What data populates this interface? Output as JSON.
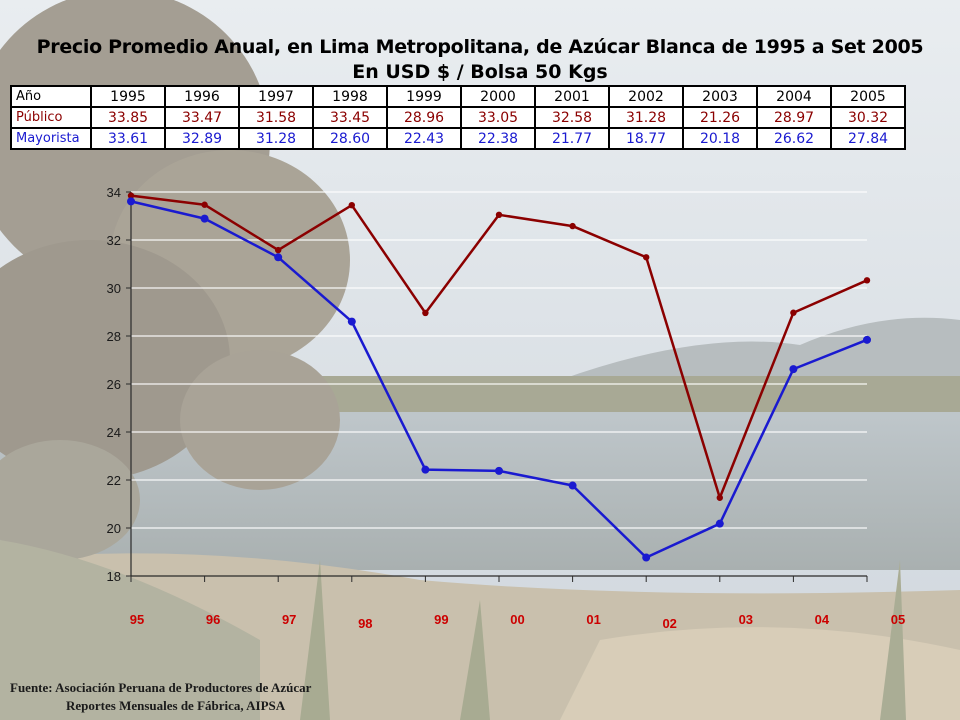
{
  "title": "Precio Promedio Anual, en Lima Metropolitana, de Azúcar Blanca de  1995 a Set 2005",
  "subtitle": "En  USD $  / Bolsa 50 Kgs",
  "table": {
    "year_header": "Año",
    "years": [
      "1995",
      "1996",
      "1997",
      "1998",
      "1999",
      "2000",
      "2001",
      "2002",
      "2003",
      "2004",
      "2005"
    ],
    "rows": [
      {
        "label": "Público",
        "values": [
          "33.85",
          "33.47",
          "31.58",
          "33.45",
          "28.96",
          "33.05",
          "32.58",
          "31.28",
          "21.26",
          "28.97",
          "30.32"
        ]
      },
      {
        "label": "Mayorista",
        "values": [
          "33.61",
          "32.89",
          "31.28",
          "28.60",
          "22.43",
          "22.38",
          "21.77",
          "18.77",
          "20.18",
          "26.62",
          "27.84"
        ]
      }
    ]
  },
  "chart_data": {
    "type": "line",
    "categories": [
      "95",
      "96",
      "97",
      "98",
      "99",
      "00",
      "01",
      "02",
      "03",
      "04",
      "05"
    ],
    "series": [
      {
        "name": "Público",
        "color": "#8b0000",
        "values": [
          33.85,
          33.47,
          31.58,
          33.45,
          28.96,
          33.05,
          32.58,
          31.28,
          21.26,
          28.97,
          30.32
        ]
      },
      {
        "name": "Mayorista",
        "color": "#1a1ad0",
        "values": [
          33.61,
          32.89,
          31.28,
          28.6,
          22.43,
          22.38,
          21.77,
          18.77,
          20.18,
          26.62,
          27.84
        ]
      }
    ],
    "ylim": [
      18,
      34
    ],
    "yticks": [
      18,
      20,
      22,
      24,
      26,
      28,
      30,
      32,
      34
    ],
    "grid": true,
    "legend": "none",
    "xlabel": "",
    "ylabel": ""
  },
  "source": {
    "line1": "Fuente: Asociación Peruana de Productores de Azúcar",
    "line2": "Reportes Mensuales de Fábrica, AIPSA"
  },
  "colors": {
    "axis_labels": "#cc0000",
    "grid": "#ffffff"
  }
}
